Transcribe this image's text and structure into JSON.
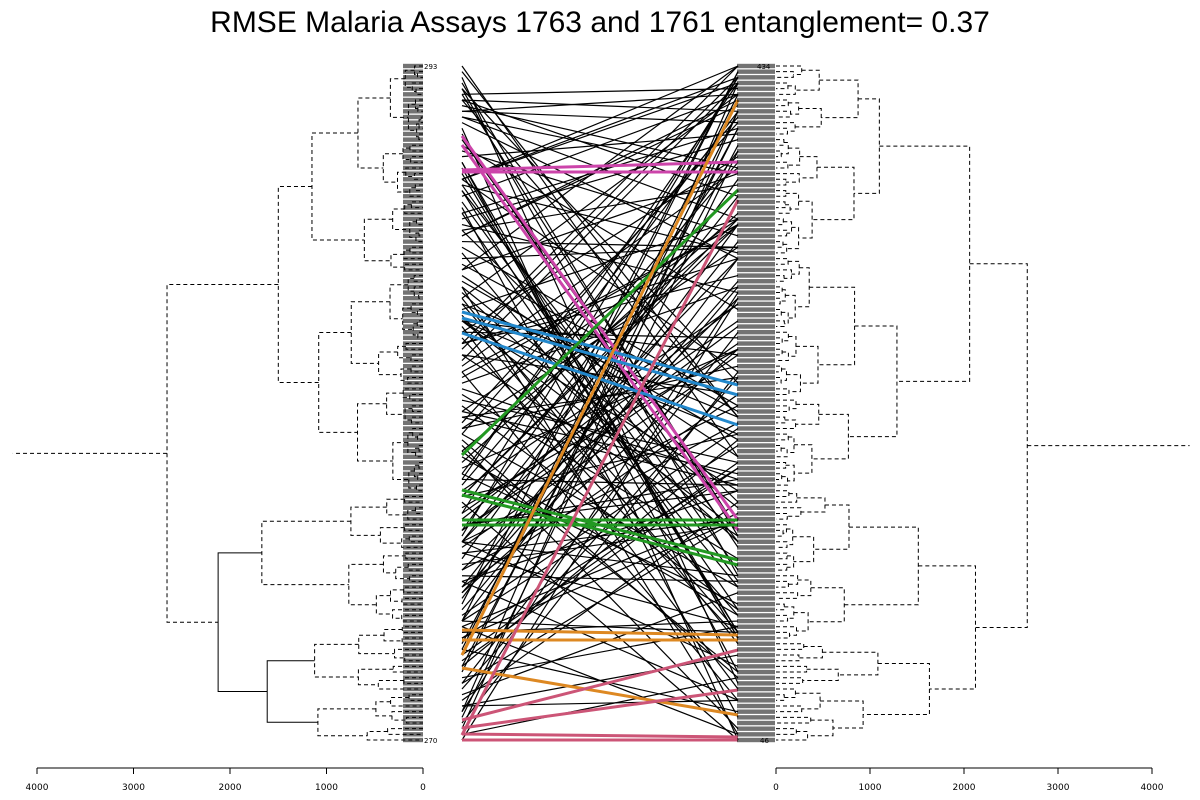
{
  "chart_data": {
    "type": "tanglegram",
    "title": "RMSE Malaria Assays 1763 and 1761 entanglement= 0.37",
    "left_axis": {
      "ticks": [
        4000,
        3000,
        2000,
        1000,
        0
      ],
      "range": [
        4000,
        0
      ]
    },
    "right_axis": {
      "ticks": [
        0,
        1000,
        2000,
        3000,
        4000
      ],
      "range": [
        0,
        4000
      ]
    },
    "highlight_colors": [
      "#cc44aa",
      "#2288cc",
      "#229922",
      "#dd8822",
      "#cc5577"
    ],
    "link_color": "#000000",
    "left_leaf_labels_visible": [
      "293",
      "270"
    ],
    "right_leaf_labels_visible": [
      "434",
      "46"
    ]
  }
}
